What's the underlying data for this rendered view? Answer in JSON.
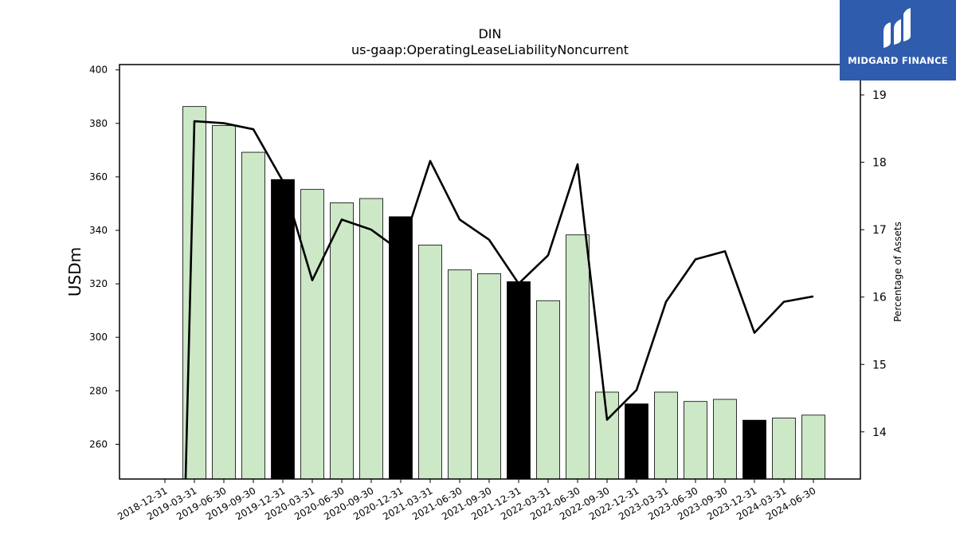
{
  "chart_data": {
    "type": "bar",
    "title": "DIN",
    "subtitle": "us-gaap:OperatingLeaseLiabilityNoncurrent",
    "ylabel": "USDm",
    "ylabel_right": "Percentage of Assets",
    "categories": [
      "2018-12-31",
      "2019-03-31",
      "2019-06-30",
      "2019-09-30",
      "2019-12-31",
      "2020-03-31",
      "2020-06-30",
      "2020-09-30",
      "2020-12-31",
      "2021-03-31",
      "2021-06-30",
      "2021-09-30",
      "2021-12-31",
      "2022-03-31",
      "2022-06-30",
      "2022-09-30",
      "2022-12-31",
      "2023-03-31",
      "2023-06-30",
      "2023-09-30",
      "2023-12-31",
      "2024-03-31",
      "2024-06-30"
    ],
    "series": [
      {
        "type": "bar",
        "axis": "left",
        "values": [
          null,
          386.3,
          379.2,
          369.2,
          359.0,
          355.3,
          350.3,
          351.9,
          345.1,
          334.5,
          325.2,
          323.8,
          320.8,
          313.7,
          338.3,
          279.5,
          275.1,
          279.5,
          276.0,
          276.8,
          269.0,
          269.8,
          270.9
        ],
        "colors": [
          "#cce8c7",
          "#cce8c7",
          "#cce8c7",
          "#cce8c7",
          "#000000",
          "#cce8c7",
          "#cce8c7",
          "#cce8c7",
          "#000000",
          "#cce8c7",
          "#cce8c7",
          "#cce8c7",
          "#000000",
          "#cce8c7",
          "#cce8c7",
          "#cce8c7",
          "#000000",
          "#cce8c7",
          "#cce8c7",
          "#cce8c7",
          "#000000",
          "#cce8c7",
          "#cce8c7"
        ]
      },
      {
        "type": "line",
        "axis": "right",
        "color": "#000000",
        "values": [
          null,
          18.61,
          18.58,
          18.49,
          17.72,
          16.25,
          17.15,
          17.0,
          16.68,
          18.02,
          17.15,
          16.85,
          16.2,
          16.62,
          17.97,
          14.18,
          14.62,
          15.93,
          16.56,
          16.68,
          15.47,
          15.93,
          16.01
        ],
        "start_value": 13.0
      }
    ],
    "ylim": [
      247,
      402
    ],
    "yticks": [
      260,
      280,
      300,
      320,
      340,
      360,
      380,
      400
    ],
    "y2lim": [
      13.3,
      19.45
    ],
    "y2ticks": [
      14,
      15,
      16,
      17,
      18,
      19
    ],
    "grid": false,
    "legend": "none"
  },
  "logo": {
    "text": "MIDGARD FINANCE",
    "background": "#2f5cad",
    "icon": "midgard-logo-icon"
  }
}
